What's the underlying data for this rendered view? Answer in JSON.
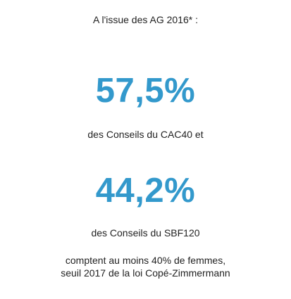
{
  "intro": "A l'issue des AG 2016* :",
  "stats": [
    {
      "value": "57,5%",
      "caption": "des Conseils du CAC40 et"
    },
    {
      "value": "44,2%",
      "caption": "des Conseils du SBF120"
    }
  ],
  "footer": {
    "line1": "comptent au moins 40% de femmes,",
    "line2": "seuil 2017 de la loi Copé-Zimmermann"
  },
  "colors": {
    "accent": "#3399cc",
    "text": "#222222",
    "background": "#ffffff"
  }
}
